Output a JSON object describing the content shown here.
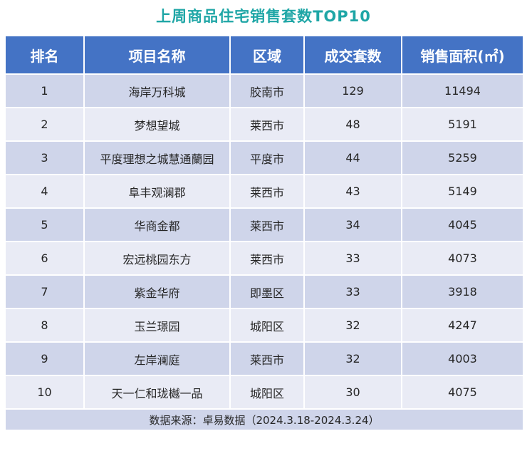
{
  "chart_data": {
    "type": "table",
    "title": "上周商品住宅销售套数TOP10",
    "columns": [
      "排名",
      "项目名称",
      "区域",
      "成交套数",
      "销售面积(㎡)"
    ],
    "rows": [
      [
        "1",
        "海岸万科城",
        "胶南市",
        "129",
        "11494"
      ],
      [
        "2",
        "梦想望城",
        "莱西市",
        "48",
        "5191"
      ],
      [
        "3",
        "平度理想之城慧通蘭园",
        "平度市",
        "44",
        "5259"
      ],
      [
        "4",
        "阜丰观澜郡",
        "莱西市",
        "43",
        "5149"
      ],
      [
        "5",
        "华商金都",
        "莱西市",
        "34",
        "4045"
      ],
      [
        "6",
        "宏远桃园东方",
        "莱西市",
        "33",
        "4073"
      ],
      [
        "7",
        "紫金华府",
        "即墨区",
        "33",
        "3918"
      ],
      [
        "8",
        "玉兰璟园",
        "城阳区",
        "32",
        "4247"
      ],
      [
        "9",
        "左岸澜庭",
        "莱西市",
        "32",
        "4003"
      ],
      [
        "10",
        "天一仁和珑樾一品",
        "城阳区",
        "30",
        "4075"
      ]
    ],
    "source": "数据来源：卓易数据（2024.3.18-2024.3.24）"
  },
  "colors": {
    "title": "#1fa6a6",
    "header_bg": "#4473c5",
    "row_dark": "#cfd5ea",
    "row_light": "#e9ebf5"
  }
}
